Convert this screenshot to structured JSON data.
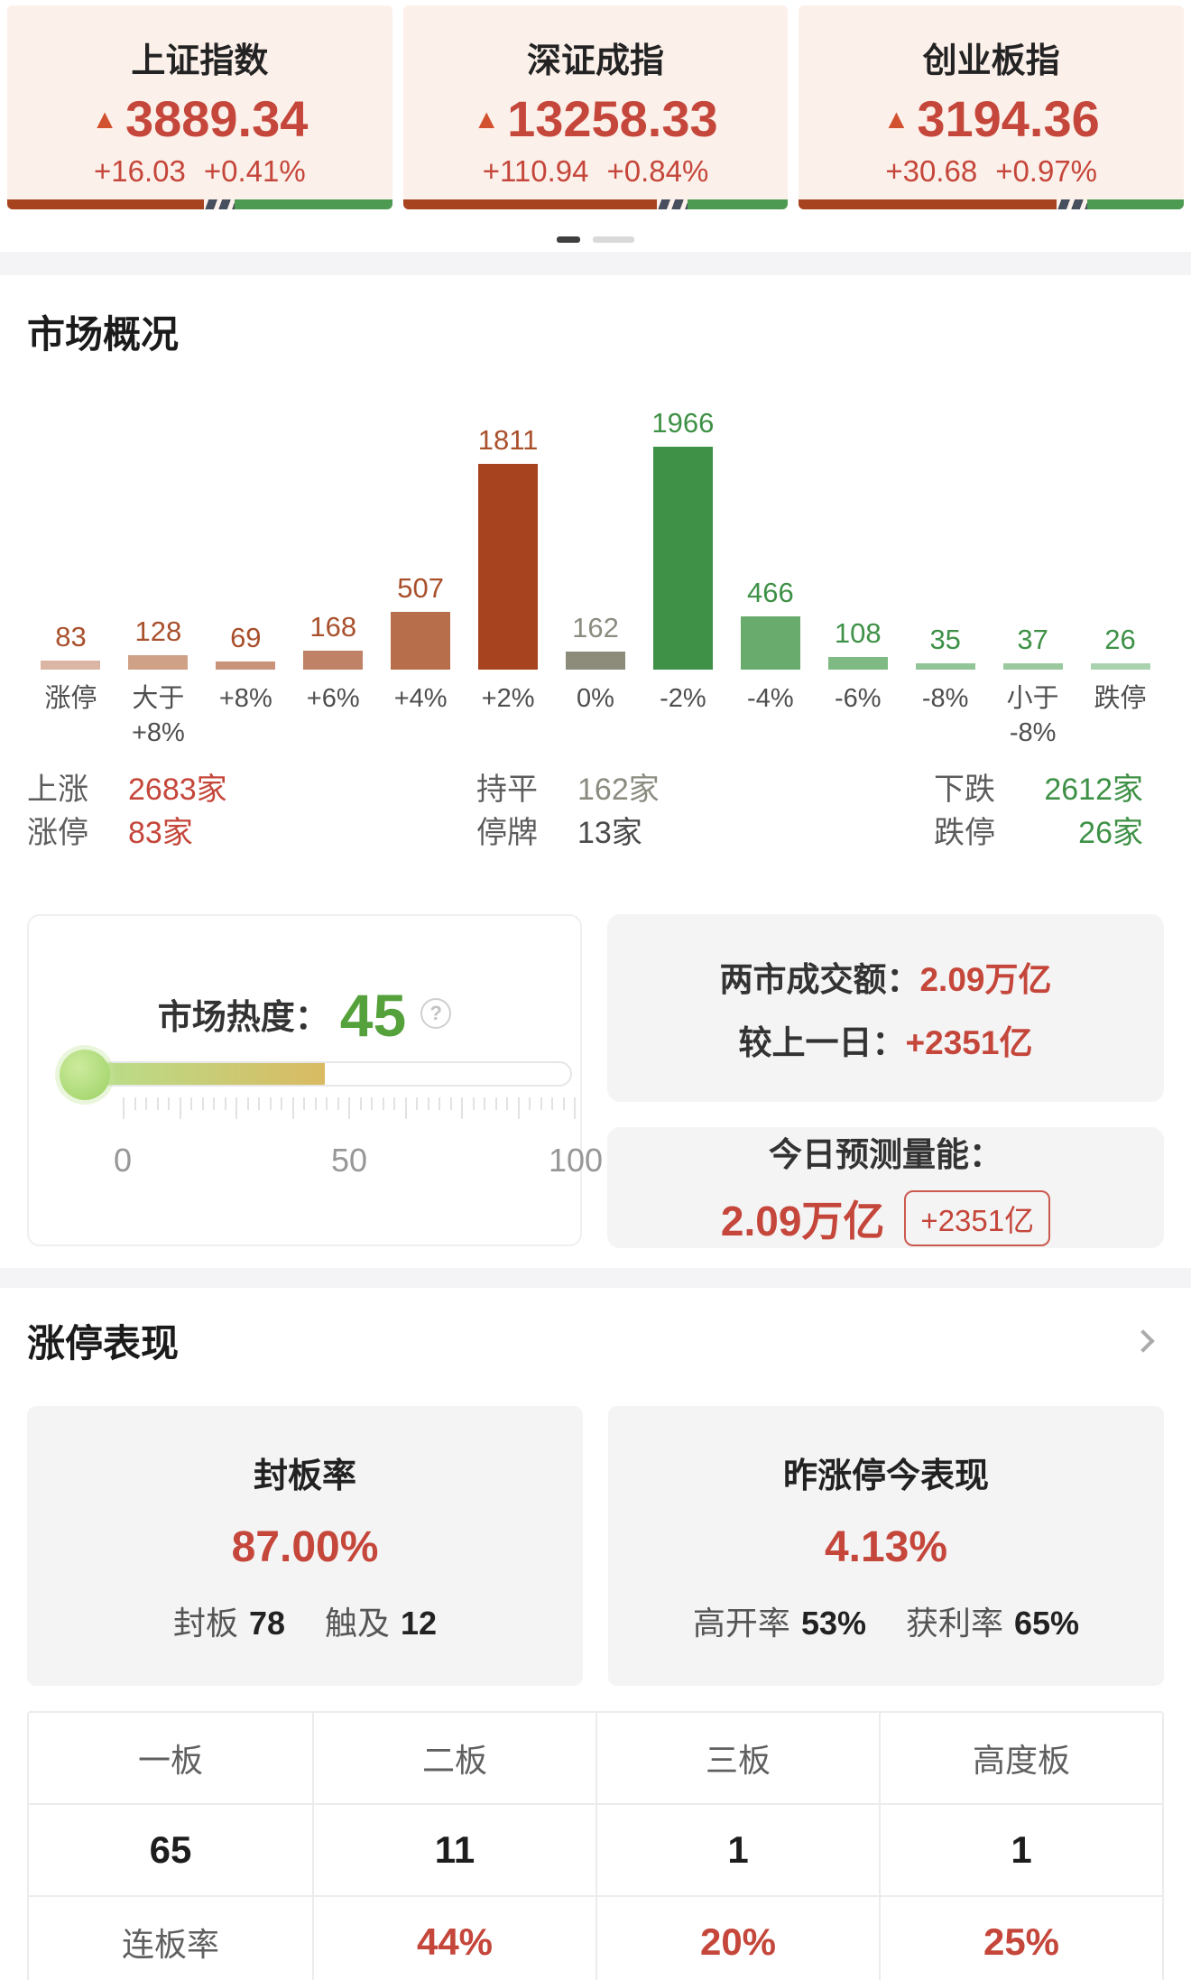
{
  "colors": {
    "accent_red": "#c5463a",
    "accent_green": "#3f9147",
    "neutral_gray": "#8b8b80",
    "dark_text": "#4a4a4a",
    "heat_green": "#55a13b",
    "bar_red_segment": "#a8431f",
    "bar_green_segment": "#4d9a52"
  },
  "index_cards": [
    {
      "title": "上证指数",
      "arrow": "▲",
      "value": "3889.34",
      "change": "+16.03",
      "pct": "+0.41%",
      "bar": {
        "red_pct": 51
      }
    },
    {
      "title": "深证成指",
      "arrow": "▲",
      "value": "13258.33",
      "change": "+110.94",
      "pct": "+0.84%",
      "bar": {
        "red_pct": 66
      }
    },
    {
      "title": "创业板指",
      "arrow": "▲",
      "value": "3194.36",
      "change": "+30.68",
      "pct": "+0.97%",
      "bar": {
        "red_pct": 67
      }
    }
  ],
  "pagination": {
    "dots": 2,
    "active_index": 0
  },
  "market_overview": {
    "title": "市场概况",
    "chart_data": {
      "type": "bar",
      "categories": [
        "涨停",
        "大于+8%",
        "+8%",
        "+6%",
        "+4%",
        "+2%",
        "0%",
        "-2%",
        "-4%",
        "-6%",
        "-8%",
        "小于-8%",
        "跌停"
      ],
      "category_lines": [
        [
          "涨停"
        ],
        [
          "大于",
          "+8%"
        ],
        [
          "+8%"
        ],
        [
          "+6%"
        ],
        [
          "+4%"
        ],
        [
          "+2%"
        ],
        [
          "0%"
        ],
        [
          "-2%"
        ],
        [
          "-4%"
        ],
        [
          "-6%"
        ],
        [
          "-8%"
        ],
        [
          "小于",
          "-8%"
        ],
        [
          "跌停"
        ]
      ],
      "values": [
        83,
        128,
        69,
        168,
        507,
        1811,
        162,
        1966,
        466,
        108,
        35,
        37,
        26
      ],
      "bar_colors": [
        "#dcb6a4",
        "#cfa287",
        "#c9937b",
        "#c08266",
        "#b76f4b",
        "#a8431f",
        "#8d8b7a",
        "#3f9147",
        "#68ab6c",
        "#7fb983",
        "#93c497",
        "#9bc89e",
        "#abd2ae"
      ],
      "label_colors": [
        "#a9502c",
        "#a9502c",
        "#a9502c",
        "#a9502c",
        "#a9502c",
        "#a9502c",
        "#8b8b80",
        "#3f9147",
        "#3f9147",
        "#3f9147",
        "#3f9147",
        "#3f9147",
        "#3f9147"
      ],
      "title": "市场概况",
      "xlabel": "",
      "ylabel": "",
      "ylim": [
        0,
        1966
      ],
      "grid": false,
      "legend": false
    },
    "breadth_rows": [
      [
        {
          "label": "上涨",
          "value": "2683家",
          "color": "red"
        },
        {
          "label": "持平",
          "value": "162家",
          "color": "gray"
        },
        {
          "label": "下跌",
          "value": "2612家",
          "color": "green"
        }
      ],
      [
        {
          "label": "涨停",
          "value": "83家",
          "color": "red"
        },
        {
          "label": "停牌",
          "value": "13家",
          "color": "dark"
        },
        {
          "label": "跌停",
          "value": "26家",
          "color": "green"
        }
      ]
    ]
  },
  "heat_card": {
    "label": "市场热度：",
    "value": "45",
    "help": "?",
    "slider": {
      "value": 45,
      "min_label": "0",
      "mid_label": "50",
      "max_label": "100",
      "ticks": 41
    }
  },
  "turnover_card": {
    "rows": [
      {
        "label": "两市成交额：",
        "value": "2.09万亿"
      },
      {
        "label": "较上一日：",
        "value": "+2351亿"
      }
    ]
  },
  "forecast_card": {
    "title": "今日预测量能：",
    "value": "2.09万亿",
    "badge": "+2351亿"
  },
  "limit_up": {
    "title": "涨停表现",
    "seal_card": {
      "title": "封板率",
      "value": "87.00%",
      "items": [
        {
          "label": "封板",
          "value": "78"
        },
        {
          "label": "触及",
          "value": "12"
        }
      ]
    },
    "yesterday_card": {
      "title": "昨涨停今表现",
      "value": "4.13%",
      "items": [
        {
          "label": "高开率",
          "value": "53%"
        },
        {
          "label": "获利率",
          "value": "65%"
        }
      ]
    },
    "board_table": {
      "headers": [
        "一板",
        "二板",
        "三板",
        "高度板"
      ],
      "counts": [
        "65",
        "11",
        "1",
        "1"
      ],
      "rate_label": "连板率",
      "rate_values": [
        "44%",
        "20%",
        "25%"
      ]
    }
  }
}
